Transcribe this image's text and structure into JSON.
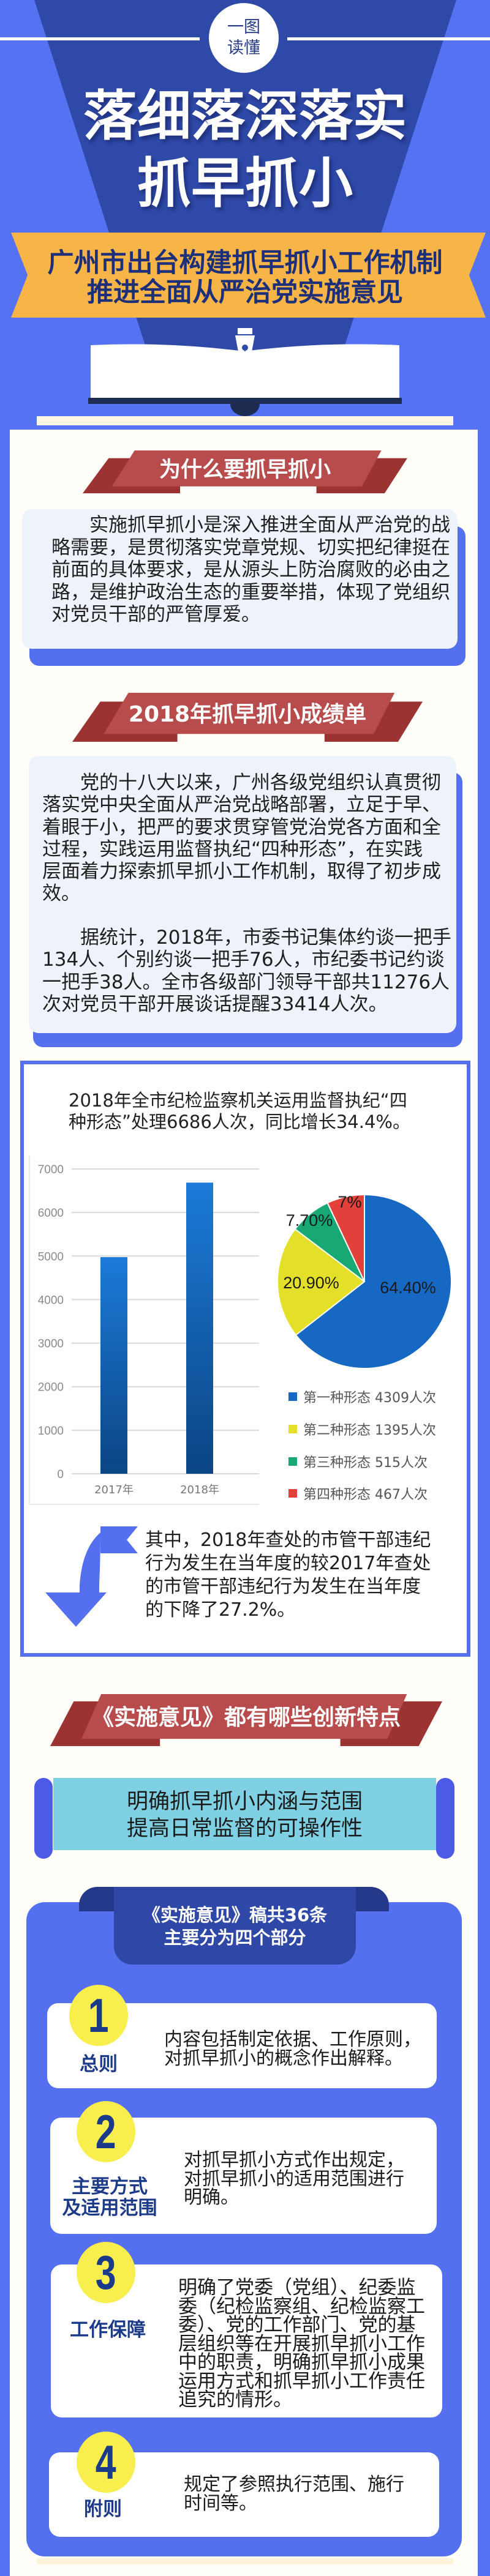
{
  "header": {
    "badge_line1": "一图",
    "badge_line2": "读懂",
    "title_line1": "落细落深落实",
    "title_line2": "抓早抓小",
    "subtitle_line1": "广州市出台构建抓早抓小工作机制",
    "subtitle_line2": "推进全面从严治党实施意见"
  },
  "section1": {
    "heading": "为什么要抓早抓小",
    "lines": [
      "实施抓早抓小是深入推进全面从严治党的战",
      "略需要，是贯彻落实党章党规、切实把纪律挺在",
      "前面的具体要求，是从源头上防治腐败的必由之",
      "路，是维护政治生态的重要举措，体现了党组织",
      "对党员干部的严管厚爱。"
    ]
  },
  "section2": {
    "heading": "2018年抓早抓小成绩单",
    "para1": [
      "党的十八大以来，广州各级党组织认真贯彻",
      "落实党中央全面从严治党战略部署，立足于早、",
      "着眼于小，把严的要求贯穿管党治党各方面和全",
      "过程，实践运用监督执纪“四种形态”，在实践",
      "层面着力探索抓早抓小工作机制，取得了初步成",
      "效。"
    ],
    "para2": [
      "据统计，2018年，市委书记集体约谈一把手",
      "134人、个别约谈一把手76人，市纪委书记约谈",
      "一把手38人。全市各级部门领导干部共11276人",
      "次对党员干部开展谈话提醒33414人次。"
    ]
  },
  "chart_data": [
    {
      "type": "bar",
      "title_lines": [
        "2018年全市纪检监察机关运用监督执纪“四",
        "种形态”处理6686人次，同比增长34.4%。"
      ],
      "categories": [
        "2017年",
        "2018年"
      ],
      "values": [
        4975,
        6686
      ],
      "ylim": [
        0,
        7000
      ],
      "yticks": [
        "0",
        "1000",
        "2000",
        "3000",
        "4000",
        "5000",
        "6000",
        "7000"
      ],
      "grid": true,
      "color_top": "#1c7ad8",
      "color_bottom": "#0b4584"
    },
    {
      "type": "pie",
      "labels": [
        "第一种形态",
        "第二种形态",
        "第三种形态",
        "第四种形态"
      ],
      "values": [
        4309,
        1395,
        515,
        467
      ],
      "percent_labels": [
        "64.40%",
        "20.90%",
        "7.70%",
        "7%"
      ],
      "legend": [
        "第一种形态 4309人次",
        "第二种形态 1395人次",
        "第三种形态 515人次",
        "第四种形态 467人次"
      ],
      "legend_position": "bottom",
      "colors": [
        "#1668c2",
        "#e4e02a",
        "#17a874",
        "#e2403a"
      ]
    }
  ],
  "note": {
    "lines": [
      "其中，2018年查处的市管干部违纪",
      "行为发生在当年度的较2017年查处",
      "的市管干部违纪行为发生在当年度",
      "的下降了27.2%。"
    ]
  },
  "section3": {
    "heading": "《实施意见》都有哪些创新特点",
    "banner_line1": "明确抓早抓小内涵与范围",
    "banner_line2": "提高日常监督的可操作性",
    "parts_title_line1": "《实施意见》稿共36条",
    "parts_title_line2": "主要分为四个部分",
    "items": [
      {
        "number": "1",
        "label_lines": [
          "总则"
        ],
        "lines": [
          "内容包括制定依据、工作原则，",
          "对抓早抓小的概念作出解释。"
        ]
      },
      {
        "number": "2",
        "label_lines": [
          "主要方式",
          "及适用范围"
        ],
        "lines": [
          "对抓早抓小方式作出规定，",
          "对抓早抓小的适用范围进行",
          "明确。"
        ]
      },
      {
        "number": "3",
        "label_lines": [
          "工作保障"
        ],
        "lines": [
          "明确了党委（党组）、纪委监",
          "委（纪检监察组、纪检监察工",
          "委）、党的工作部门、党的基",
          "层组织等在开展抓早抓小工作",
          "中的职责，明确抓早抓小成果",
          "运用方式和抓早抓小工作责任",
          "追究的情形。"
        ]
      },
      {
        "number": "4",
        "label_lines": [
          "附则"
        ],
        "lines": [
          "规定了参照执行范围、施行",
          "时间等。"
        ]
      }
    ]
  },
  "colors": {
    "background": "#5572f2",
    "navy": "#2f49a8",
    "ribbon_orange": "#f7b548",
    "heading_red": "#b84c4c",
    "banner_cyan": "#7fd0e3",
    "number_yellow": "#f8ef4e"
  }
}
